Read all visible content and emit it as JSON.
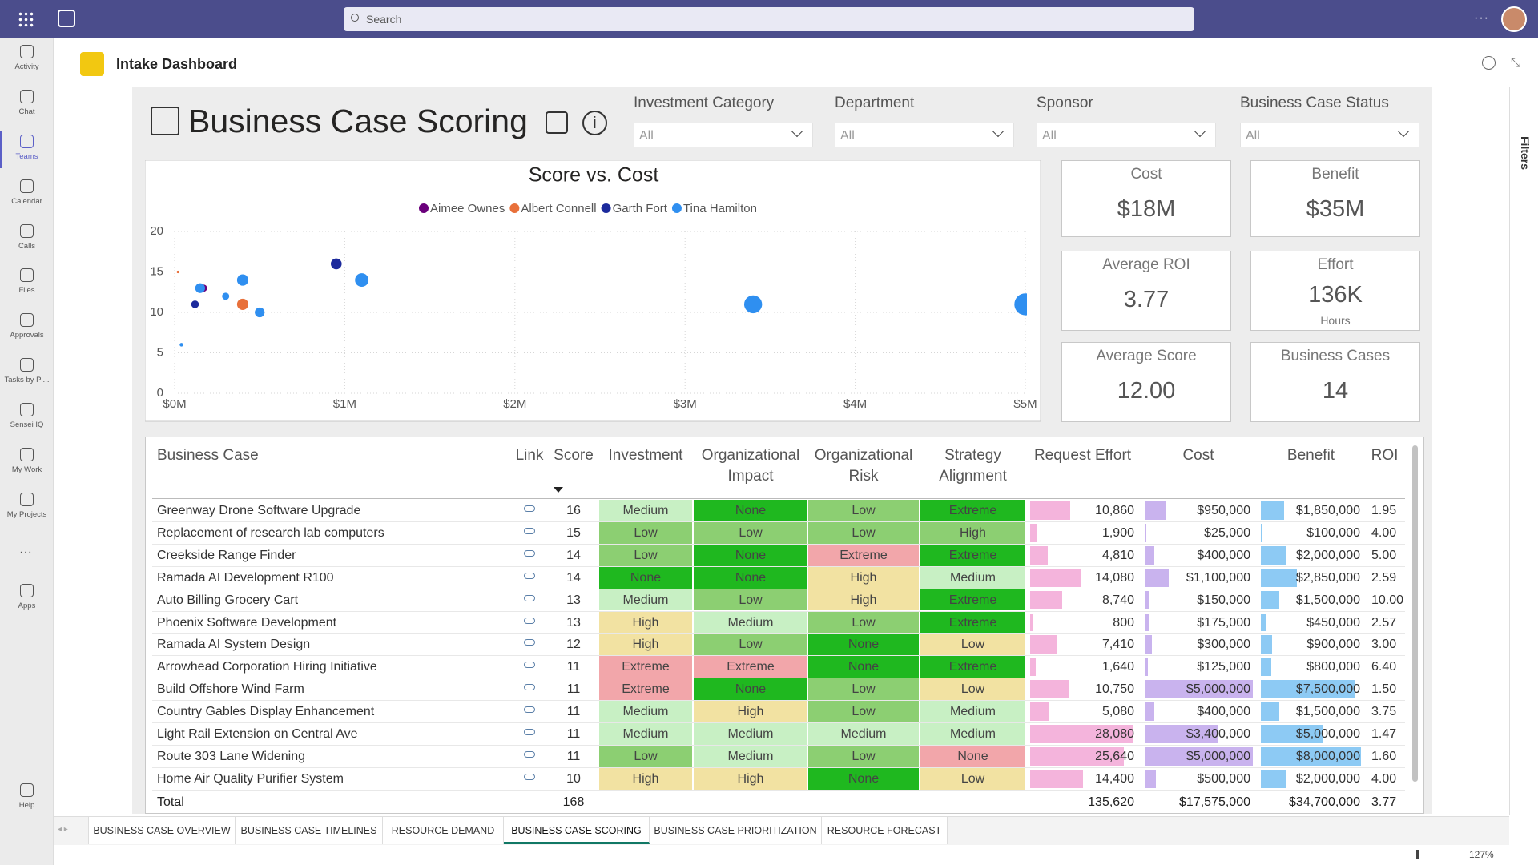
{
  "top_bar": {
    "search_placeholder": "Search"
  },
  "left_rail": [
    "Activity",
    "Chat",
    "Teams",
    "Calendar",
    "Calls",
    "Files",
    "Approvals",
    "Tasks by Pl...",
    "Sensei IQ",
    "My Work",
    "My Projects",
    "Apps",
    "Help"
  ],
  "app_header": {
    "title": "Intake Dashboard"
  },
  "report": {
    "title": "Business Case Scoring",
    "filters": [
      {
        "label": "Investment Category",
        "value": "All"
      },
      {
        "label": "Department",
        "value": "All"
      },
      {
        "label": "Sponsor",
        "value": "All"
      },
      {
        "label": "Business Case Status",
        "value": "All"
      }
    ]
  },
  "chart_data": {
    "type": "scatter",
    "title": "Score vs. Cost",
    "series": [
      {
        "name": "Aimee Ownes",
        "color": "#6a007b",
        "x": [
          0.17
        ],
        "y": [
          13
        ],
        "sizes": [
          0.8
        ]
      },
      {
        "name": "Albert Connell",
        "color": "#e8703a",
        "x": [
          0.02,
          0.4
        ],
        "y": [
          15,
          11
        ],
        "sizes": [
          0.1,
          2
        ]
      },
      {
        "name": "Garth Fort",
        "color": "#1c2a9c",
        "x": [
          0.12,
          0.95
        ],
        "y": [
          11,
          16
        ],
        "sizes": [
          0.9,
          1.85
        ]
      },
      {
        "name": "Tina Hamilton",
        "color": "#2f8ff0",
        "x": [
          0.04,
          0.15,
          0.3,
          0.4,
          0.5,
          1.1,
          3.4,
          5.0
        ],
        "y": [
          6,
          13,
          12,
          14,
          10,
          14,
          11,
          11
        ],
        "sizes": [
          0.2,
          1.5,
          0.8,
          2,
          1.5,
          2.85,
          5,
          7.5
        ]
      }
    ],
    "xlim": [
      0,
      5
    ],
    "xticks": [
      {
        "value": 0,
        "label": "$0M"
      },
      {
        "value": 1,
        "label": "$1M"
      },
      {
        "value": 2,
        "label": "$2M"
      },
      {
        "value": 3,
        "label": "$3M"
      },
      {
        "value": 4,
        "label": "$4M"
      },
      {
        "value": 5,
        "label": "$5M"
      }
    ],
    "ylim": [
      0,
      20
    ],
    "yticks": [
      0,
      5,
      10,
      15,
      20
    ],
    "grid": true
  },
  "kpis": [
    {
      "label": "Cost",
      "value": "$18M"
    },
    {
      "label": "Benefit",
      "value": "$35M"
    },
    {
      "label": "Average ROI",
      "value": "3.77"
    },
    {
      "label": "Effort",
      "value": "136K",
      "unit": "Hours"
    },
    {
      "label": "Average Score",
      "value": "12.00"
    },
    {
      "label": "Business Cases",
      "value": "14"
    }
  ],
  "table": {
    "columns": [
      "Business Case",
      "Link",
      "Score",
      "Investment",
      "Organizational Impact",
      "Organizational Risk",
      "Strategy Alignment",
      "Request Effort",
      "Cost",
      "Benefit",
      "ROI"
    ],
    "rows": [
      [
        "Greenway Drone Software Upgrade",
        "16",
        "Medium",
        "None",
        "Low",
        "Extreme",
        "10,860",
        "$950,000",
        "$1,850,000",
        "1.95"
      ],
      [
        "Replacement of research lab computers",
        "15",
        "Low",
        "Low",
        "Low",
        "High",
        "1,900",
        "$25,000",
        "$100,000",
        "4.00"
      ],
      [
        "Creekside Range Finder",
        "14",
        "Low",
        "None",
        "Extreme",
        "Extreme",
        "4,810",
        "$400,000",
        "$2,000,000",
        "5.00"
      ],
      [
        "Ramada AI Development R100",
        "14",
        "None",
        "None",
        "High",
        "Medium",
        "14,080",
        "$1,100,000",
        "$2,850,000",
        "2.59"
      ],
      [
        "Auto Billing Grocery Cart",
        "13",
        "Medium",
        "Low",
        "High",
        "Extreme",
        "8,740",
        "$150,000",
        "$1,500,000",
        "10.00"
      ],
      [
        "Phoenix Software Development",
        "13",
        "High",
        "Medium",
        "Low",
        "Extreme",
        "800",
        "$175,000",
        "$450,000",
        "2.57"
      ],
      [
        "Ramada AI System Design",
        "12",
        "High",
        "Low",
        "None",
        "Low",
        "7,410",
        "$300,000",
        "$900,000",
        "3.00"
      ],
      [
        "Arrowhead Corporation Hiring Initiative",
        "11",
        "Extreme",
        "Extreme",
        "None",
        "Extreme",
        "1,640",
        "$125,000",
        "$800,000",
        "6.40"
      ],
      [
        "Build Offshore Wind Farm",
        "11",
        "Extreme",
        "None",
        "Low",
        "Low",
        "10,750",
        "$5,000,000",
        "$7,500,000",
        "1.50"
      ],
      [
        "Country Gables Display Enhancement",
        "11",
        "Medium",
        "High",
        "Low",
        "Medium",
        "5,080",
        "$400,000",
        "$1,500,000",
        "3.75"
      ],
      [
        "Light Rail Extension on Central Ave",
        "11",
        "Medium",
        "Medium",
        "Medium",
        "Medium",
        "28,080",
        "$3,400,000",
        "$5,000,000",
        "1.47"
      ],
      [
        "Route 303 Lane Widening",
        "11",
        "Low",
        "Medium",
        "Low",
        "None",
        "25,640",
        "$5,000,000",
        "$8,000,000",
        "1.60"
      ],
      [
        "Home Air Quality Purifier System",
        "10",
        "High",
        "High",
        "None",
        "Low",
        "14,400",
        "$500,000",
        "$2,000,000",
        "4.00"
      ]
    ],
    "total": {
      "label": "Total",
      "score": "168",
      "effort": "135,620",
      "cost": "$17,575,000",
      "benefit": "$34,700,000",
      "roi": "3.77"
    },
    "level_colors": [
      {
        "None": "#1fb81f",
        "Low": "#8ccf72",
        "Medium": "#c8f0c4",
        "High": "#f2e2a2",
        "Extreme": "#f2a6aa"
      },
      {
        "None": "#1fb81f",
        "Low": "#8ccf72",
        "Medium": "#c8f0c4",
        "High": "#f2e2a2",
        "Extreme": "#f2a6aa"
      },
      {
        "None": "#1fb81f",
        "Low": "#8ccf72",
        "Medium": "#c8f0c4",
        "High": "#f2e2a2",
        "Extreme": "#f2a6aa"
      },
      {
        "Extreme": "#1fb81f",
        "High": "#8ccf72",
        "Medium": "#c8f0c4",
        "Low": "#f2e2a2",
        "None": "#f2a6aa"
      }
    ],
    "bar_colors": [
      "#f4b4dc",
      "#c9b3ee",
      "#8dcaf4"
    ]
  },
  "tabs": [
    "BUSINESS CASE OVERVIEW",
    "BUSINESS CASE TIMELINES",
    "RESOURCE DEMAND",
    "BUSINESS CASE SCORING",
    "BUSINESS CASE PRIORITIZATION",
    "RESOURCE FORECAST"
  ],
  "active_tab": 3,
  "side_panel": "Filters",
  "zoom": "127%"
}
